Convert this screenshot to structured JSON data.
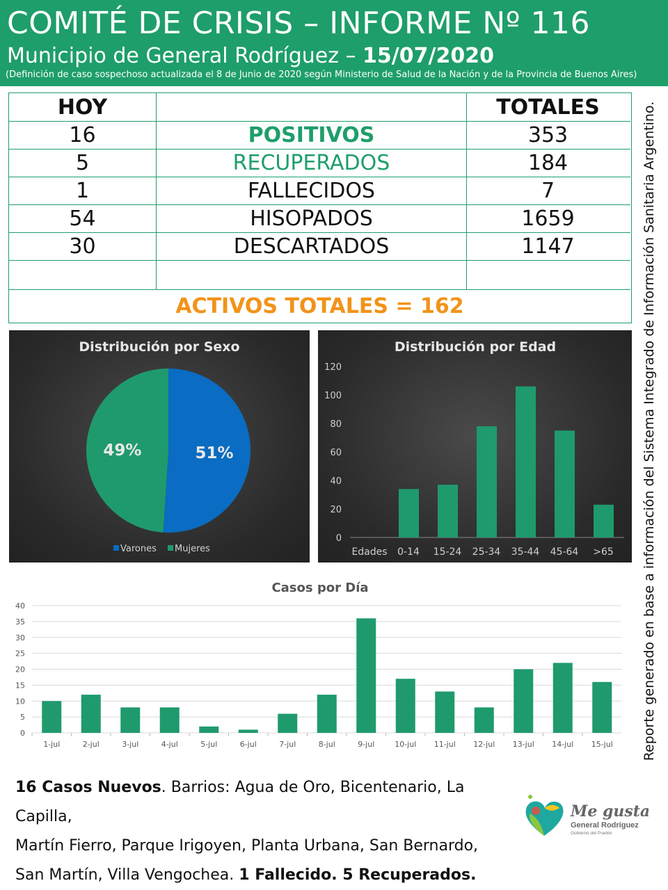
{
  "header": {
    "title": "COMITÉ DE CRISIS – INFORME Nº 116",
    "subtitle_prefix": "Municipio de General Rodríguez – ",
    "date": "15/07/2020",
    "note": "(Definición de caso sospechoso actualizada el 8 de Junio de 2020 según Ministerio de Salud de la Nación y de la Provincia de Buenos Aires)"
  },
  "table": {
    "col_hoy": "HOY",
    "col_totales": "TOTALES",
    "rows": [
      {
        "hoy": "16",
        "label": "POSITIVOS",
        "total": "353"
      },
      {
        "hoy": "5",
        "label": "RECUPERADOS",
        "total": "184"
      },
      {
        "hoy": "1",
        "label": "FALLECIDOS",
        "total": "7"
      },
      {
        "hoy": "54",
        "label": "HISOPADOS",
        "total": "1659"
      },
      {
        "hoy": "30",
        "label": "DESCARTADOS",
        "total": "1147"
      }
    ],
    "activos": "ACTIVOS TOTALES = 162"
  },
  "colors": {
    "brand_green": "#1e9e6a",
    "bar_green": "#1f9a6d",
    "pie_blue": "#0a6cc2",
    "orange": "#f29318"
  },
  "side_note": "Reporte generado en base a información del Sistema Integrado de Información Sanitaria Argentino.",
  "footer": {
    "bold1": "16 Casos Nuevos",
    "text1": ". Barrios: Agua de Oro, Bicentenario, La Capilla,",
    "text2": "Martín Fierro, Parque Irigoyen, Planta Urbana, San Bernardo,",
    "text3": "San Martín, Villa Vengochea. ",
    "bold2": "1 Fallecido. 5 Recuperados."
  },
  "logo": {
    "script": "Me gusta",
    "name": "General Rodríguez",
    "tagline": "Gobierno del Pueblo"
  },
  "chart_data": [
    {
      "type": "pie",
      "title": "Distribución por Sexo",
      "categories": [
        "Varones",
        "Mujeres"
      ],
      "values": [
        51,
        49
      ],
      "labels": [
        "51%",
        "49%"
      ],
      "colors": [
        "#0a6cc2",
        "#1f9a6d"
      ],
      "legend": "bottom"
    },
    {
      "type": "bar",
      "title": "Distribución por Edad",
      "x_first_label": "Edades",
      "categories": [
        "0-14",
        "15-24",
        "25-34",
        "35-44",
        "45-64",
        ">65"
      ],
      "values": [
        34,
        37,
        78,
        106,
        75,
        23
      ],
      "ylim": [
        0,
        120
      ],
      "yticks": [
        0,
        20,
        40,
        60,
        80,
        100,
        120
      ],
      "grid": false
    },
    {
      "type": "bar",
      "title": "Casos por Día",
      "categories": [
        "1-jul",
        "2-jul",
        "3-jul",
        "4-jul",
        "5-jul",
        "6-jul",
        "7-jul",
        "8-jul",
        "9-jul",
        "10-jul",
        "11-jul",
        "12-jul",
        "13-jul",
        "14-jul",
        "15-jul"
      ],
      "values": [
        10,
        12,
        8,
        8,
        2,
        1,
        6,
        12,
        36,
        17,
        13,
        8,
        20,
        22,
        16
      ],
      "ylim": [
        0,
        40
      ],
      "yticks": [
        0,
        5,
        10,
        15,
        20,
        25,
        30,
        35,
        40
      ],
      "grid": true
    }
  ]
}
